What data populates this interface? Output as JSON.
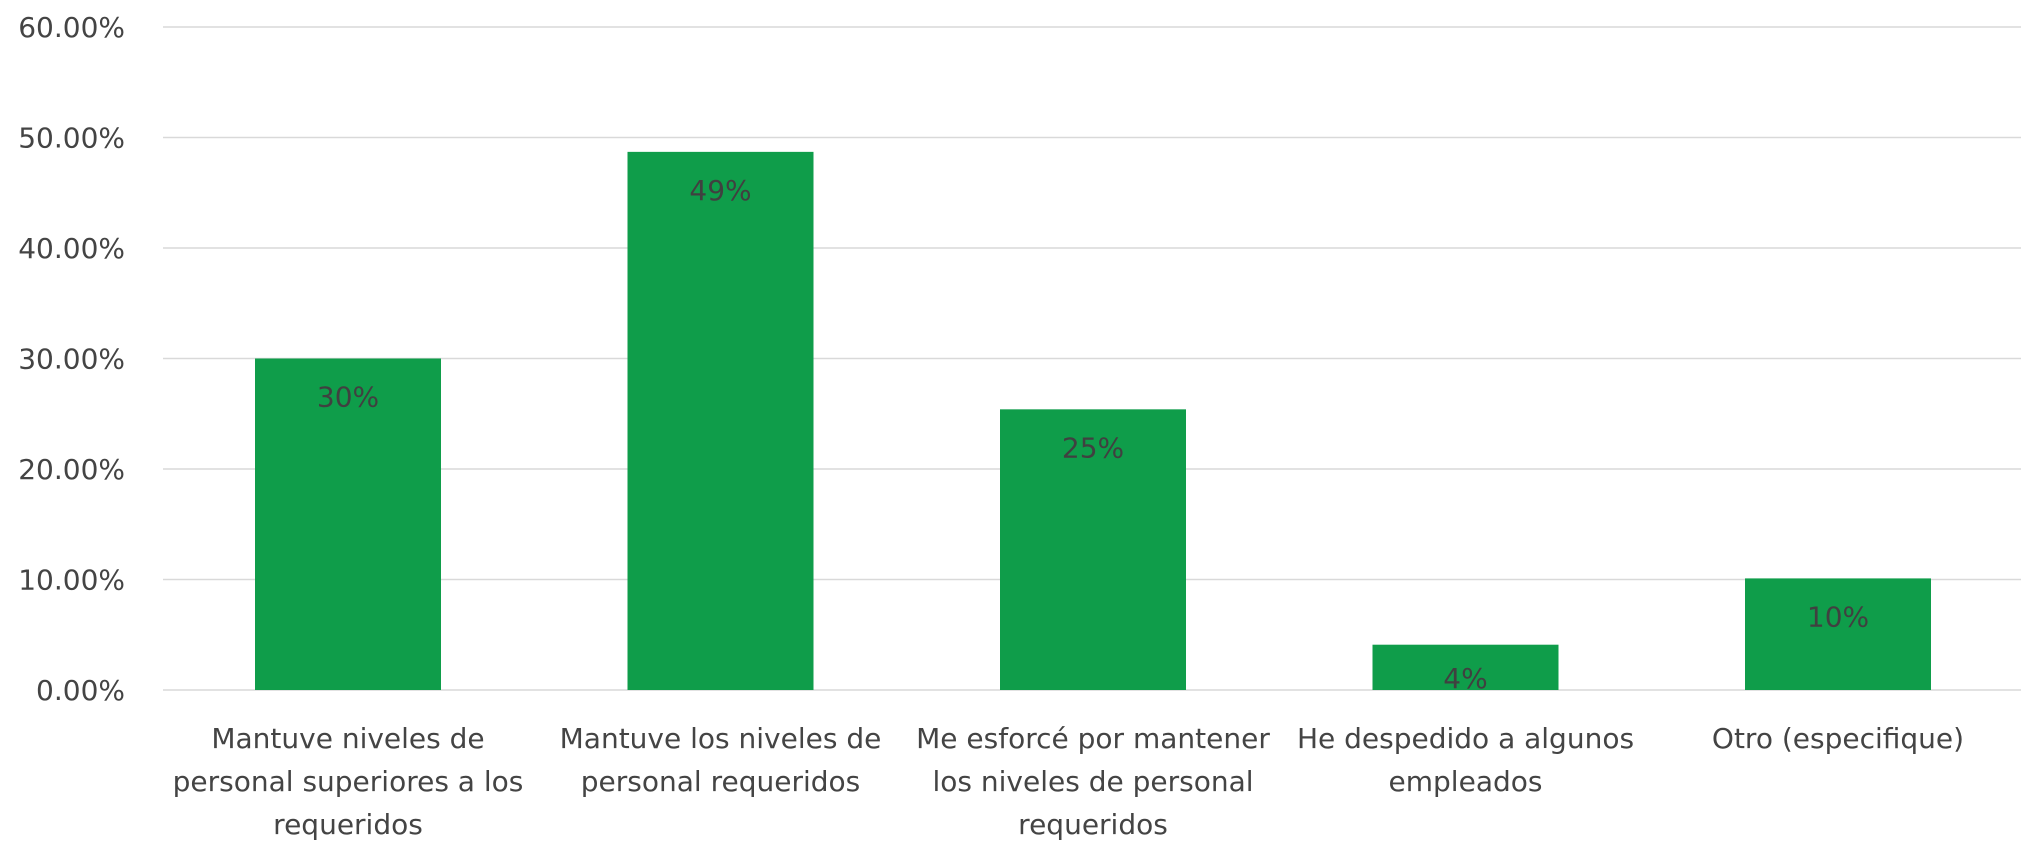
{
  "colors": {
    "bar": "#0f9d4a",
    "grid": "#d9d9d9",
    "text": "#444444"
  },
  "chart_data": {
    "type": "bar",
    "title": "",
    "xlabel": "",
    "ylabel": "",
    "ylim": [
      0,
      60
    ],
    "yticks": [
      "0.00%",
      "10.00%",
      "20.00%",
      "30.00%",
      "40.00%",
      "50.00%",
      "60.00%"
    ],
    "grid": true,
    "legend": "none",
    "categories": [
      [
        "Mantuve niveles de",
        "personal superiores a los",
        "requeridos"
      ],
      [
        "Mantuve los niveles de",
        "personal requeridos"
      ],
      [
        "Me esforcé por mantener",
        "los niveles de personal",
        "requeridos"
      ],
      [
        "He despedido a algunos",
        "empleados"
      ],
      [
        "Otro (especifique)"
      ]
    ],
    "values": [
      30,
      48.7,
      25.4,
      4.1,
      10.1
    ],
    "data_labels": [
      "30%",
      "49%",
      "25%",
      "4%",
      "10%"
    ]
  }
}
